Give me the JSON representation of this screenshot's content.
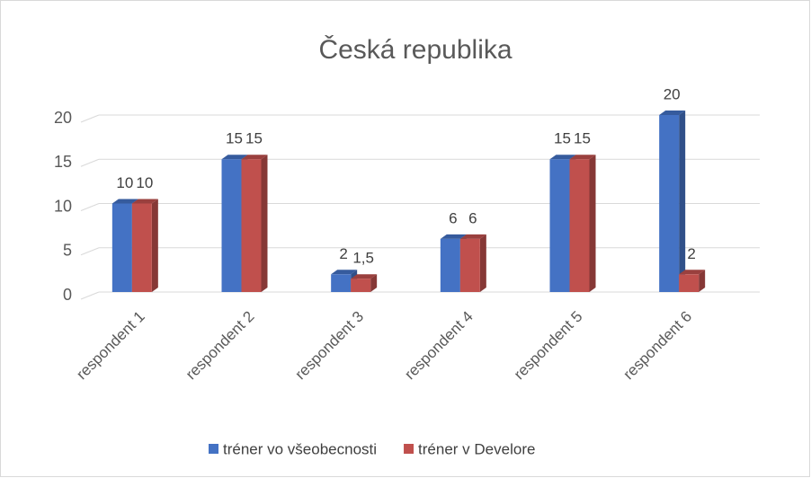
{
  "chart_data": {
    "type": "bar3d",
    "title": "Česká republika",
    "categories": [
      "respondent 1",
      "respondent 2",
      "respondent 3",
      "respondent 4",
      "respondent 5",
      "respondent 6"
    ],
    "series": [
      {
        "name": "tréner vo všeobecnosti",
        "color": "#4472c4",
        "values": [
          10,
          15,
          2,
          6,
          15,
          20
        ]
      },
      {
        "name": "tréner v Develore",
        "color": "#c0504d",
        "values": [
          10,
          15,
          1.5,
          6,
          15,
          2
        ],
        "value_labels": [
          "10",
          "15",
          "1,5",
          "6",
          "15",
          "2"
        ]
      }
    ],
    "ylim": [
      0,
      20
    ],
    "yticks": [
      0,
      5,
      10,
      15,
      20
    ],
    "grid": true,
    "legend": "bottom"
  }
}
